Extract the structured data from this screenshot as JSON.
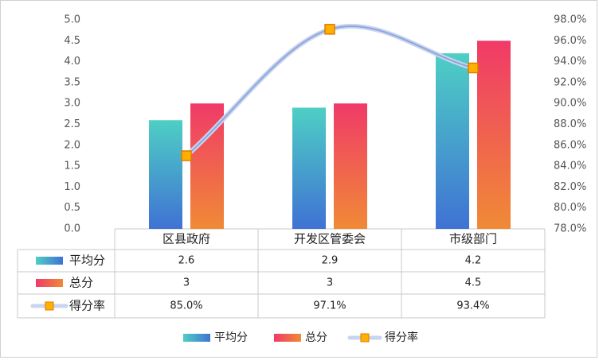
{
  "chart_data": {
    "type": "bar",
    "title": "",
    "categories": [
      "区县政府",
      "开发区管委会",
      "市级部门"
    ],
    "series": [
      {
        "name": "平均分",
        "kind": "bar",
        "axis": "left",
        "values": [
          2.6,
          2.9,
          4.2
        ],
        "value_labels": [
          "2.6",
          "2.9",
          "4.2"
        ],
        "colors": [
          "#3f72d4",
          "#4ecfc4"
        ]
      },
      {
        "name": "总分",
        "kind": "bar",
        "axis": "left",
        "values": [
          3,
          3,
          4.5
        ],
        "value_labels": [
          "3",
          "3",
          "4.5"
        ],
        "colors": [
          "#f08a36",
          "#f03a68"
        ]
      },
      {
        "name": "得分率",
        "kind": "line",
        "axis": "right",
        "values": [
          85.0,
          97.1,
          93.4
        ],
        "value_labels": [
          "85.0%",
          "97.1%",
          "93.4%"
        ],
        "colors": [
          "#cdd8f0",
          "#f5a800"
        ]
      }
    ],
    "ylim_left": [
      0,
      5
    ],
    "yticks_left": [
      "0.0",
      "0.5",
      "1.0",
      "1.5",
      "2.0",
      "2.5",
      "3.0",
      "3.5",
      "4.0",
      "4.5",
      "5.0"
    ],
    "ylim_right": [
      78,
      98
    ],
    "yticks_right": [
      "78.0%",
      "80.0%",
      "82.0%",
      "84.0%",
      "86.0%",
      "88.0%",
      "90.0%",
      "92.0%",
      "94.0%",
      "96.0%",
      "98.0%"
    ],
    "grid": false,
    "data_table": true,
    "legend": "bottom"
  }
}
